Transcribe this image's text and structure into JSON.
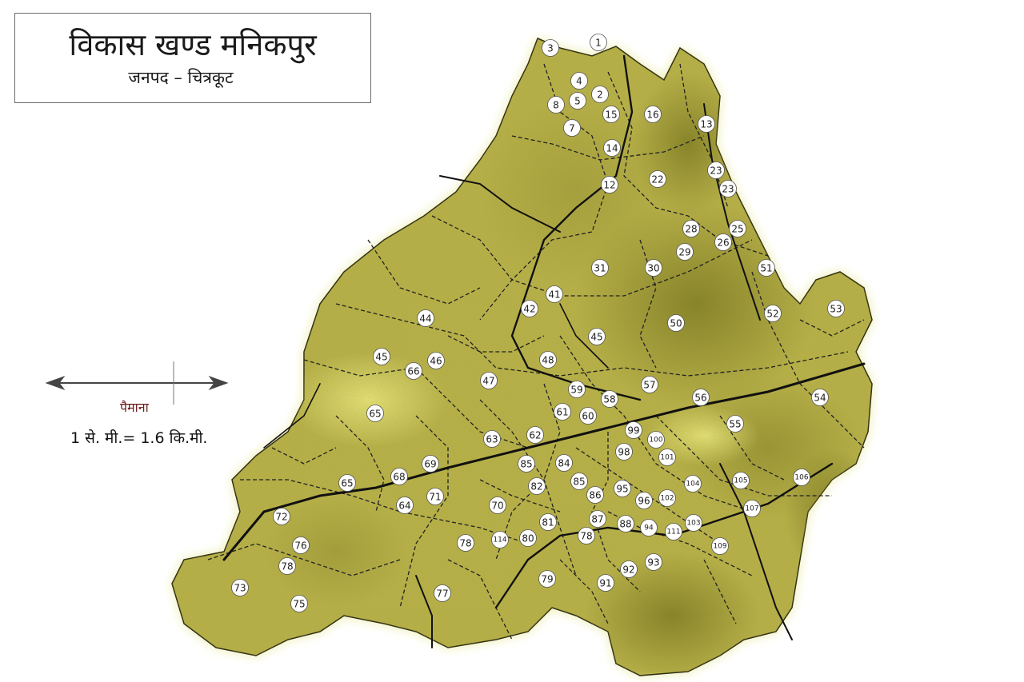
{
  "map": {
    "title": "विकास खण्ड मनिकपुर",
    "subtitle": "जनपद – चित्रकूट",
    "scale": {
      "label": "पैमाना",
      "ratio": "1 से. मी.= 1.6 कि.मी."
    },
    "colors": {
      "region_base": "#b9b24a",
      "region_dark": "#8f8a2c",
      "region_light": "#e4e27a",
      "glow": "#eaea9a",
      "road": "#111111",
      "boundary": "#222222",
      "marker_fill": "#ffffff",
      "marker_stroke": "#555555",
      "title_border": "#6b6b6b"
    },
    "villages": [
      "1",
      "2",
      "3",
      "4",
      "5",
      "7",
      "8",
      "12",
      "13",
      "14",
      "15",
      "16",
      "22",
      "23",
      "23",
      "25",
      "26",
      "28",
      "29",
      "30",
      "31",
      "41",
      "42",
      "44",
      "45",
      "45",
      "46",
      "47",
      "48",
      "50",
      "51",
      "52",
      "53",
      "54",
      "55",
      "56",
      "57",
      "58",
      "59",
      "60",
      "61",
      "62",
      "63",
      "64",
      "65",
      "65",
      "66",
      "68",
      "69",
      "70",
      "71",
      "72",
      "73",
      "75",
      "76",
      "77",
      "78",
      "78",
      "78",
      "79",
      "80",
      "81",
      "82",
      "84",
      "85",
      "85",
      "86",
      "87",
      "88",
      "91",
      "92",
      "93",
      "94",
      "95",
      "96",
      "98",
      "99",
      "100",
      "101",
      "102",
      "103",
      "104",
      "105",
      "106",
      "107",
      "109",
      "111",
      "114"
    ]
  }
}
